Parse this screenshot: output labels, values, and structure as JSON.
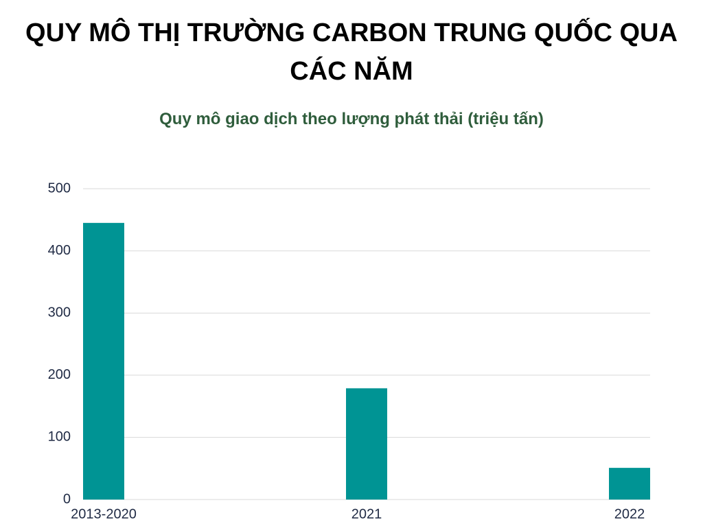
{
  "chart_data": {
    "type": "bar",
    "title": "QUY MÔ THỊ TRƯỜNG CARBON TRUNG QUỐC QUA CÁC NĂM",
    "subtitle": "Quy mô giao dịch theo lượng phát thải (triệu tấn)",
    "categories": [
      "2013-2020",
      "2021",
      "2022"
    ],
    "values": [
      445,
      179,
      51
    ],
    "color": "#009494",
    "ylim": [
      0,
      500
    ],
    "yticks": [
      0,
      100,
      200,
      300,
      400,
      500
    ],
    "grid": true
  }
}
